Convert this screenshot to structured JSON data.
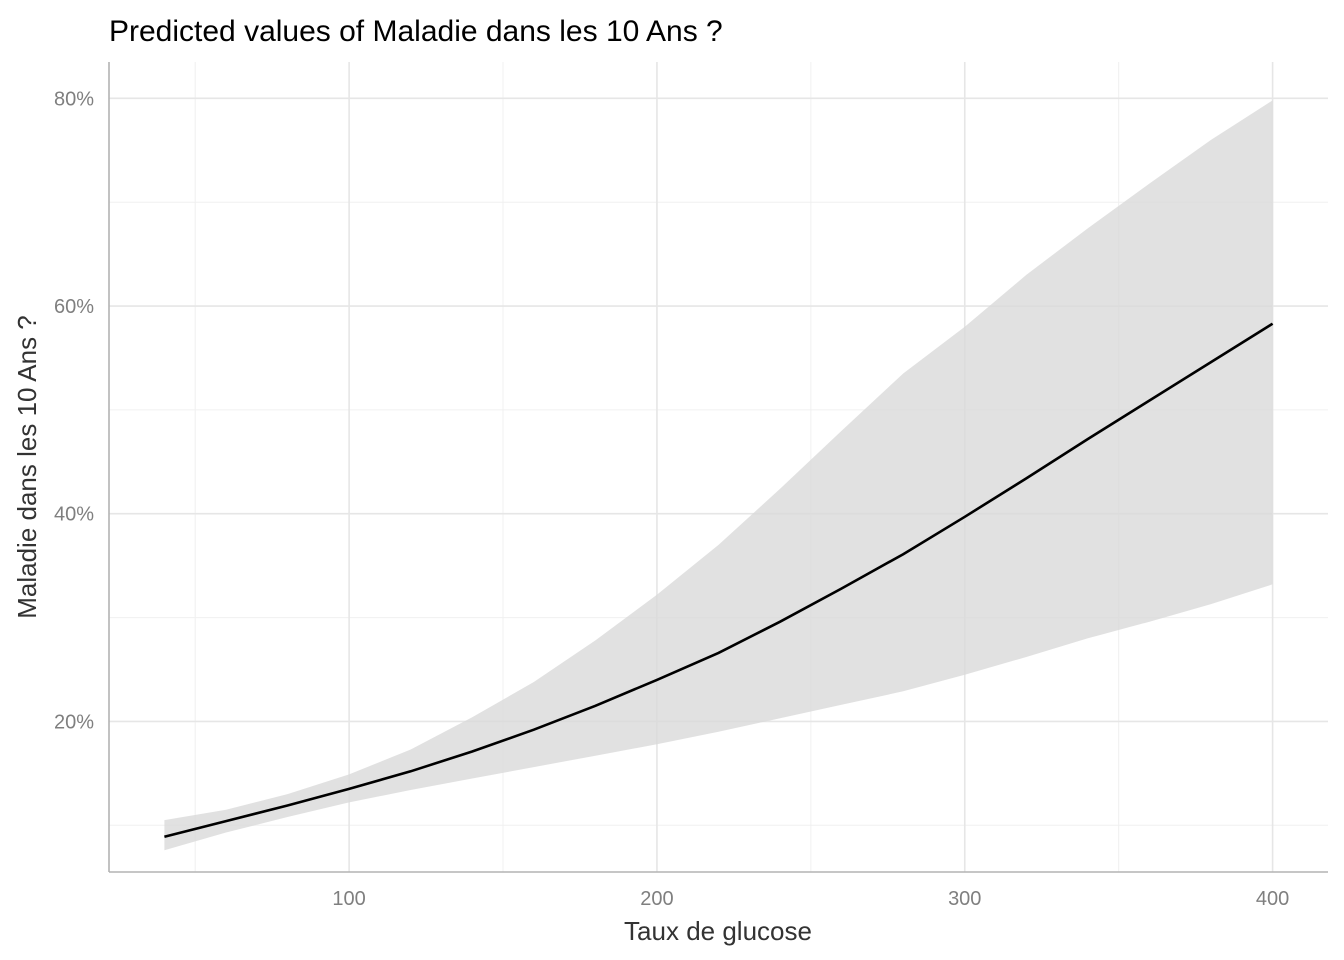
{
  "chart_data": {
    "type": "line",
    "title": "Predicted values of Maladie dans les 10 Ans ?",
    "xlabel": "Taux de glucose",
    "ylabel": "Maladie dans les 10 Ans ?",
    "xlim": [
      22,
      418
    ],
    "ylim": [
      0.055,
      0.835
    ],
    "x_ticks": [
      100,
      200,
      300,
      400
    ],
    "x_tick_labels": [
      "100",
      "200",
      "300",
      "400"
    ],
    "x_minor_ticks": [
      50,
      150,
      250,
      350
    ],
    "y_ticks": [
      0.2,
      0.4,
      0.6,
      0.8
    ],
    "y_tick_labels": [
      "20%",
      "40%",
      "60%",
      "80%"
    ],
    "y_minor_ticks": [
      0.1,
      0.3,
      0.5,
      0.7
    ],
    "grid": true,
    "series": [
      {
        "x": [
          40,
          60,
          80,
          100,
          120,
          140,
          160,
          180,
          200,
          220,
          240,
          260,
          280,
          300,
          320,
          340,
          360,
          380,
          400
        ],
        "y": [
          0.089,
          0.104,
          0.119,
          0.135,
          0.152,
          0.171,
          0.192,
          0.215,
          0.24,
          0.266,
          0.296,
          0.328,
          0.361,
          0.397,
          0.434,
          0.472,
          0.509,
          0.546,
          0.583
        ],
        "lower": [
          0.076,
          0.093,
          0.108,
          0.122,
          0.134,
          0.145,
          0.156,
          0.167,
          0.178,
          0.19,
          0.203,
          0.216,
          0.229,
          0.245,
          0.262,
          0.28,
          0.296,
          0.313,
          0.332
        ],
        "upper": [
          0.105,
          0.115,
          0.13,
          0.149,
          0.173,
          0.204,
          0.238,
          0.278,
          0.322,
          0.37,
          0.424,
          0.48,
          0.535,
          0.58,
          0.63,
          0.675,
          0.718,
          0.76,
          0.798
        ]
      }
    ]
  }
}
